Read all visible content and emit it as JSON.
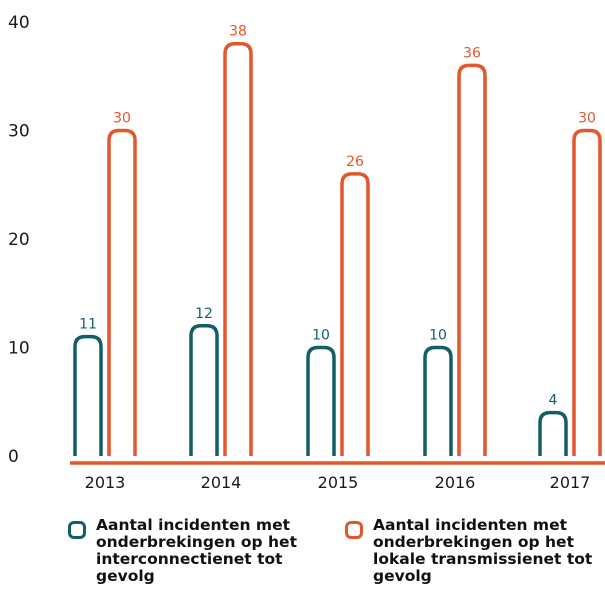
{
  "colors": {
    "series_1": "#145f66",
    "series_2": "#e4572e",
    "axis": "#e4572e",
    "text": "#1a1a1a"
  },
  "chart_data": {
    "type": "bar",
    "categories": [
      "2013",
      "2014",
      "2015",
      "2016",
      "2017"
    ],
    "series": [
      {
        "name": "Aantal incidenten met onderbrekingen op het interconnectienet tot gevolg",
        "values": [
          11,
          12,
          10,
          10,
          4
        ]
      },
      {
        "name": "Aantal incidenten met onderbrekingen op het lokale transmissienet tot gevolg",
        "values": [
          30,
          38,
          26,
          36,
          30
        ]
      }
    ],
    "ylim": [
      0,
      40
    ],
    "yticks": [
      0,
      10,
      20,
      30,
      40
    ],
    "grid": false,
    "legend_position": "bottom",
    "data_labels": true
  },
  "legend": [
    {
      "label": "Aantal incidenten met onderbrekingen op het interconnectienet tot gevolg"
    },
    {
      "label": "Aantal incidenten met onderbrekingen op het lokale transmissienet tot gevolg"
    }
  ]
}
